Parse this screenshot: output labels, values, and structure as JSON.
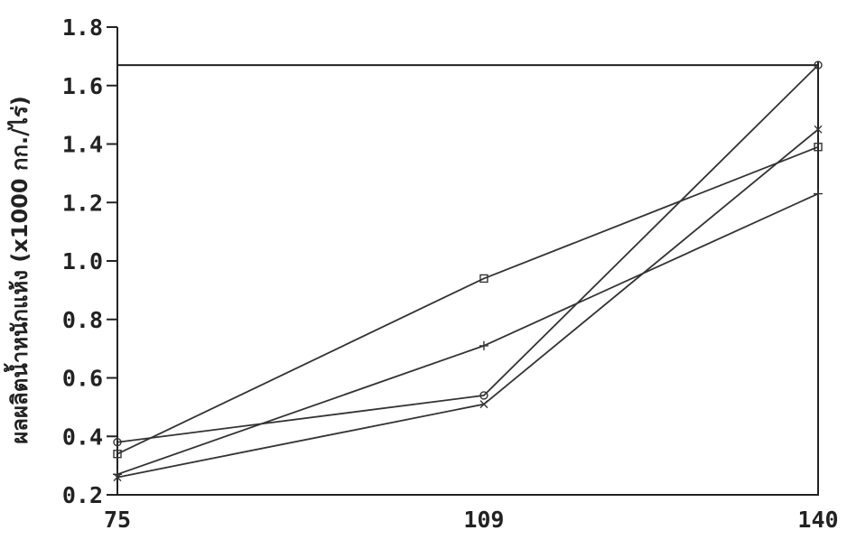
{
  "chart_data": {
    "type": "line",
    "title": "",
    "xlabel": "",
    "ylabel": "ผลผลิตน้ำหนักแห้ง (x1000 กก./ไร่)",
    "x": [
      75,
      109,
      140
    ],
    "x_tick_labels": [
      "75",
      "109",
      "140"
    ],
    "ylim": [
      0.2,
      1.8
    ],
    "y_ticks": [
      0.2,
      0.4,
      0.6,
      0.8,
      1.0,
      1.2,
      1.4,
      1.6,
      1.8
    ],
    "y_tick_labels": [
      "0.2",
      "0.4",
      "0.6",
      "0.8",
      "1.0",
      "1.2",
      "1.4",
      "1.6",
      "1.8"
    ],
    "grid": false,
    "legend": "none",
    "reference_lines": [
      {
        "y": 1.67
      }
    ],
    "series": [
      {
        "values": [
          0.34,
          0.94,
          1.39
        ],
        "marker": "square"
      },
      {
        "values": [
          0.27,
          0.71,
          1.23
        ],
        "marker": "plus"
      },
      {
        "values": [
          0.38,
          0.54,
          1.67
        ],
        "marker": "circle"
      },
      {
        "values": [
          0.26,
          0.51,
          1.45
        ],
        "marker": "x"
      }
    ]
  }
}
